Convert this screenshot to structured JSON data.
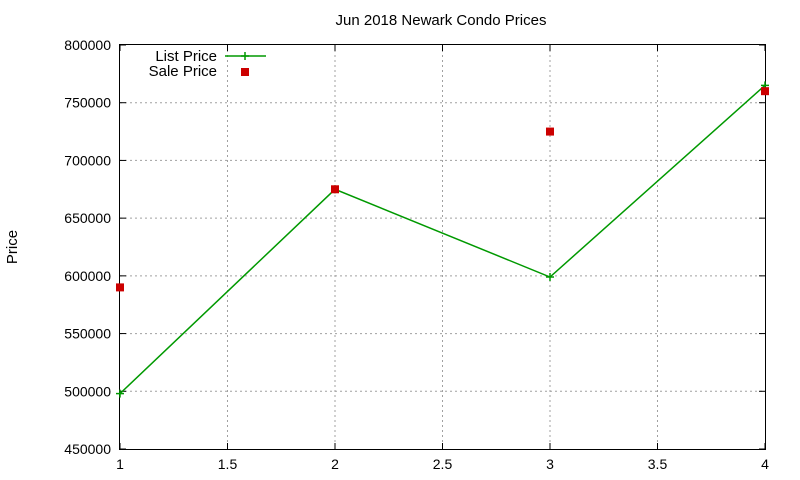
{
  "chart_data": {
    "type": "line",
    "title": "Jun 2018 Newark Condo Prices",
    "xlabel": "",
    "ylabel": "Price",
    "xlim": [
      1,
      4
    ],
    "ylim": [
      450000,
      800000
    ],
    "x_ticks": [
      "1",
      "1.5",
      "2",
      "2.5",
      "3",
      "3.5",
      "4"
    ],
    "x_tick_values": [
      1,
      1.5,
      2,
      2.5,
      3,
      3.5,
      4
    ],
    "y_ticks": [
      "450000",
      "500000",
      "550000",
      "600000",
      "650000",
      "700000",
      "750000",
      "800000"
    ],
    "y_tick_values": [
      450000,
      500000,
      550000,
      600000,
      650000,
      700000,
      750000,
      800000
    ],
    "grid": true,
    "legend_position": "top-left",
    "series": [
      {
        "name": "List Price",
        "style": "linespoints",
        "color": "#009900",
        "marker": "plus",
        "x": [
          1,
          2,
          3,
          4
        ],
        "y": [
          498000,
          675000,
          599000,
          765000
        ]
      },
      {
        "name": "Sale Price",
        "style": "points",
        "color": "#cc0000",
        "marker": "square",
        "x": [
          1,
          2,
          3,
          4
        ],
        "y": [
          590000,
          675000,
          725000,
          760000
        ]
      }
    ]
  }
}
